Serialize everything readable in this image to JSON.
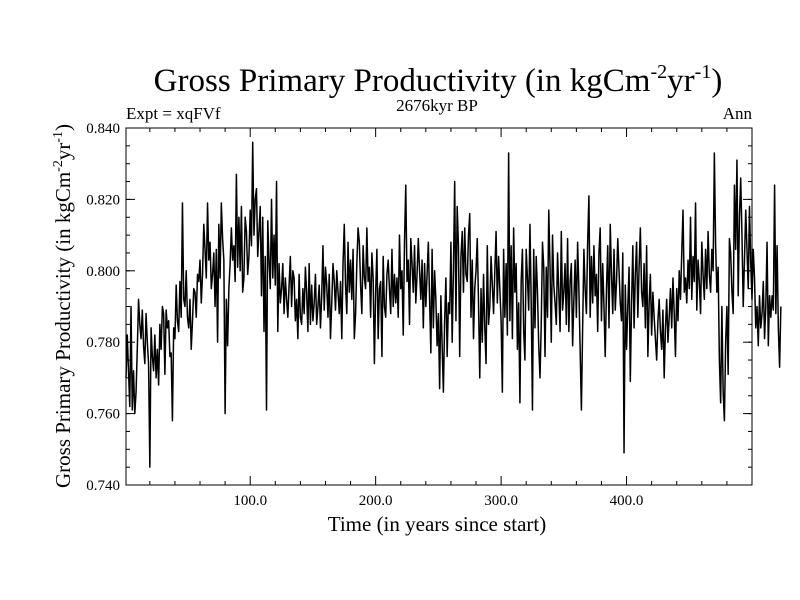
{
  "chart_data": {
    "type": "line",
    "title": {
      "main": "Gross Primary Productivity (in kgCm",
      "exp1": "-2",
      "mid": "yr",
      "exp2": "-1",
      "close": ")"
    },
    "left_label": "Expt = xqFVf",
    "center_label": "2676kyr BP",
    "right_label": "Ann",
    "xlabel": "Time (in years since start)",
    "ylabel": {
      "main": "Gross Primary Productivity (in kgCm",
      "exp1": "-2",
      "mid": "yr",
      "exp2": "-1",
      "close": ")"
    },
    "xlim": [
      1,
      500
    ],
    "ylim": [
      0.74,
      0.84
    ],
    "x_ticks": [
      100,
      200,
      300,
      400
    ],
    "x_tick_labels": [
      "100.0",
      "200.0",
      "300.0",
      "400.0"
    ],
    "y_ticks": [
      0.74,
      0.76,
      0.78,
      0.8,
      0.82,
      0.84
    ],
    "y_tick_labels": [
      "0.740",
      "0.760",
      "0.780",
      "0.800",
      "0.820",
      "0.840"
    ],
    "series": [
      {
        "name": "Gross Primary Productivity",
        "color": "#000000",
        "x_start": 1,
        "x_step": 1,
        "values": [
          0.77,
          0.782,
          0.772,
          0.762,
          0.79,
          0.761,
          0.772,
          0.76,
          0.766,
          0.778,
          0.792,
          0.785,
          0.781,
          0.789,
          0.779,
          0.774,
          0.788,
          0.78,
          0.774,
          0.745,
          0.784,
          0.776,
          0.772,
          0.782,
          0.77,
          0.778,
          0.768,
          0.785,
          0.778,
          0.79,
          0.788,
          0.771,
          0.789,
          0.784,
          0.786,
          0.776,
          0.777,
          0.758,
          0.784,
          0.781,
          0.796,
          0.786,
          0.783,
          0.797,
          0.787,
          0.819,
          0.792,
          0.79,
          0.8,
          0.787,
          0.784,
          0.792,
          0.778,
          0.786,
          0.795,
          0.794,
          0.787,
          0.799,
          0.797,
          0.803,
          0.791,
          0.799,
          0.813,
          0.806,
          0.798,
          0.819,
          0.803,
          0.808,
          0.795,
          0.799,
          0.805,
          0.79,
          0.806,
          0.78,
          0.813,
          0.798,
          0.819,
          0.809,
          0.803,
          0.76,
          0.792,
          0.779,
          0.795,
          0.802,
          0.812,
          0.803,
          0.807,
          0.797,
          0.827,
          0.801,
          0.815,
          0.8,
          0.818,
          0.794,
          0.798,
          0.815,
          0.811,
          0.799,
          0.804,
          0.817,
          0.807,
          0.836,
          0.81,
          0.82,
          0.823,
          0.804,
          0.811,
          0.818,
          0.793,
          0.815,
          0.783,
          0.804,
          0.761,
          0.814,
          0.803,
          0.795,
          0.82,
          0.798,
          0.81,
          0.796,
          0.825,
          0.783,
          0.802,
          0.791,
          0.795,
          0.802,
          0.788,
          0.798,
          0.792,
          0.787,
          0.796,
          0.804,
          0.79,
          0.8,
          0.798,
          0.786,
          0.792,
          0.781,
          0.799,
          0.787,
          0.785,
          0.795,
          0.788,
          0.801,
          0.794,
          0.783,
          0.802,
          0.785,
          0.796,
          0.786,
          0.791,
          0.799,
          0.785,
          0.79,
          0.796,
          0.784,
          0.793,
          0.807,
          0.789,
          0.801,
          0.796,
          0.787,
          0.799,
          0.781,
          0.791,
          0.802,
          0.797,
          0.789,
          0.8,
          0.794,
          0.788,
          0.797,
          0.781,
          0.802,
          0.813,
          0.796,
          0.788,
          0.808,
          0.794,
          0.803,
          0.792,
          0.806,
          0.781,
          0.788,
          0.802,
          0.812,
          0.808,
          0.796,
          0.788,
          0.807,
          0.798,
          0.795,
          0.812,
          0.797,
          0.801,
          0.787,
          0.805,
          0.798,
          0.774,
          0.794,
          0.806,
          0.781,
          0.795,
          0.797,
          0.776,
          0.804,
          0.79,
          0.787,
          0.799,
          0.803,
          0.795,
          0.788,
          0.806,
          0.79,
          0.799,
          0.791,
          0.798,
          0.787,
          0.81,
          0.795,
          0.8,
          0.782,
          0.808,
          0.824,
          0.797,
          0.803,
          0.785,
          0.809,
          0.802,
          0.794,
          0.807,
          0.791,
          0.799,
          0.809,
          0.8,
          0.792,
          0.803,
          0.784,
          0.802,
          0.79,
          0.799,
          0.808,
          0.792,
          0.777,
          0.806,
          0.784,
          0.8,
          0.792,
          0.779,
          0.788,
          0.767,
          0.793,
          0.779,
          0.766,
          0.786,
          0.798,
          0.776,
          0.791,
          0.788,
          0.808,
          0.78,
          0.8,
          0.825,
          0.786,
          0.818,
          0.807,
          0.776,
          0.804,
          0.811,
          0.794,
          0.812,
          0.799,
          0.797,
          0.81,
          0.816,
          0.787,
          0.803,
          0.781,
          0.795,
          0.8,
          0.809,
          0.791,
          0.77,
          0.795,
          0.78,
          0.799,
          0.784,
          0.774,
          0.807,
          0.785,
          0.79,
          0.804,
          0.796,
          0.788,
          0.8,
          0.811,
          0.791,
          0.804,
          0.795,
          0.786,
          0.766,
          0.806,
          0.787,
          0.802,
          0.782,
          0.833,
          0.786,
          0.807,
          0.781,
          0.812,
          0.794,
          0.802,
          0.778,
          0.791,
          0.763,
          0.797,
          0.806,
          0.783,
          0.775,
          0.806,
          0.798,
          0.789,
          0.813,
          0.791,
          0.761,
          0.806,
          0.784,
          0.804,
          0.794,
          0.779,
          0.77,
          0.785,
          0.808,
          0.801,
          0.776,
          0.801,
          0.787,
          0.817,
          0.801,
          0.78,
          0.81,
          0.796,
          0.791,
          0.785,
          0.805,
          0.794,
          0.783,
          0.811,
          0.789,
          0.794,
          0.802,
          0.785,
          0.809,
          0.783,
          0.797,
          0.802,
          0.779,
          0.792,
          0.803,
          0.787,
          0.808,
          0.795,
          0.778,
          0.761,
          0.784,
          0.806,
          0.795,
          0.788,
          0.808,
          0.821,
          0.787,
          0.804,
          0.791,
          0.807,
          0.793,
          0.799,
          0.783,
          0.805,
          0.812,
          0.786,
          0.802,
          0.79,
          0.776,
          0.795,
          0.807,
          0.784,
          0.813,
          0.799,
          0.788,
          0.806,
          0.789,
          0.797,
          0.809,
          0.8,
          0.791,
          0.786,
          0.805,
          0.749,
          0.796,
          0.778,
          0.79,
          0.801,
          0.769,
          0.791,
          0.807,
          0.784,
          0.799,
          0.808,
          0.787,
          0.801,
          0.812,
          0.794,
          0.79,
          0.802,
          0.784,
          0.807,
          0.776,
          0.791,
          0.799,
          0.782,
          0.794,
          0.787,
          0.781,
          0.775,
          0.786,
          0.792,
          0.783,
          0.778,
          0.789,
          0.77,
          0.784,
          0.792,
          0.78,
          0.787,
          0.795,
          0.784,
          0.798,
          0.788,
          0.776,
          0.795,
          0.786,
          0.8,
          0.792,
          0.805,
          0.817,
          0.794,
          0.798,
          0.791,
          0.803,
          0.795,
          0.815,
          0.792,
          0.804,
          0.797,
          0.819,
          0.789,
          0.803,
          0.797,
          0.788,
          0.808,
          0.799,
          0.792,
          0.806,
          0.795,
          0.811,
          0.799,
          0.794,
          0.806,
          0.8,
          0.833,
          0.807,
          0.794,
          0.801,
          0.775,
          0.763,
          0.79,
          0.766,
          0.758,
          0.78,
          0.79,
          0.771,
          0.809,
          0.805,
          0.794,
          0.788,
          0.824,
          0.806,
          0.831,
          0.793,
          0.815,
          0.826,
          0.81,
          0.79,
          0.803,
          0.817,
          0.806,
          0.795,
          0.818,
          0.802,
          0.792,
          0.806,
          0.798,
          0.784,
          0.79,
          0.779,
          0.793,
          0.784,
          0.788,
          0.797,
          0.781,
          0.79,
          0.808,
          0.779,
          0.793,
          0.787,
          0.793,
          0.789,
          0.824,
          0.788,
          0.807,
          0.784,
          0.773,
          0.79
        ]
      }
    ]
  }
}
